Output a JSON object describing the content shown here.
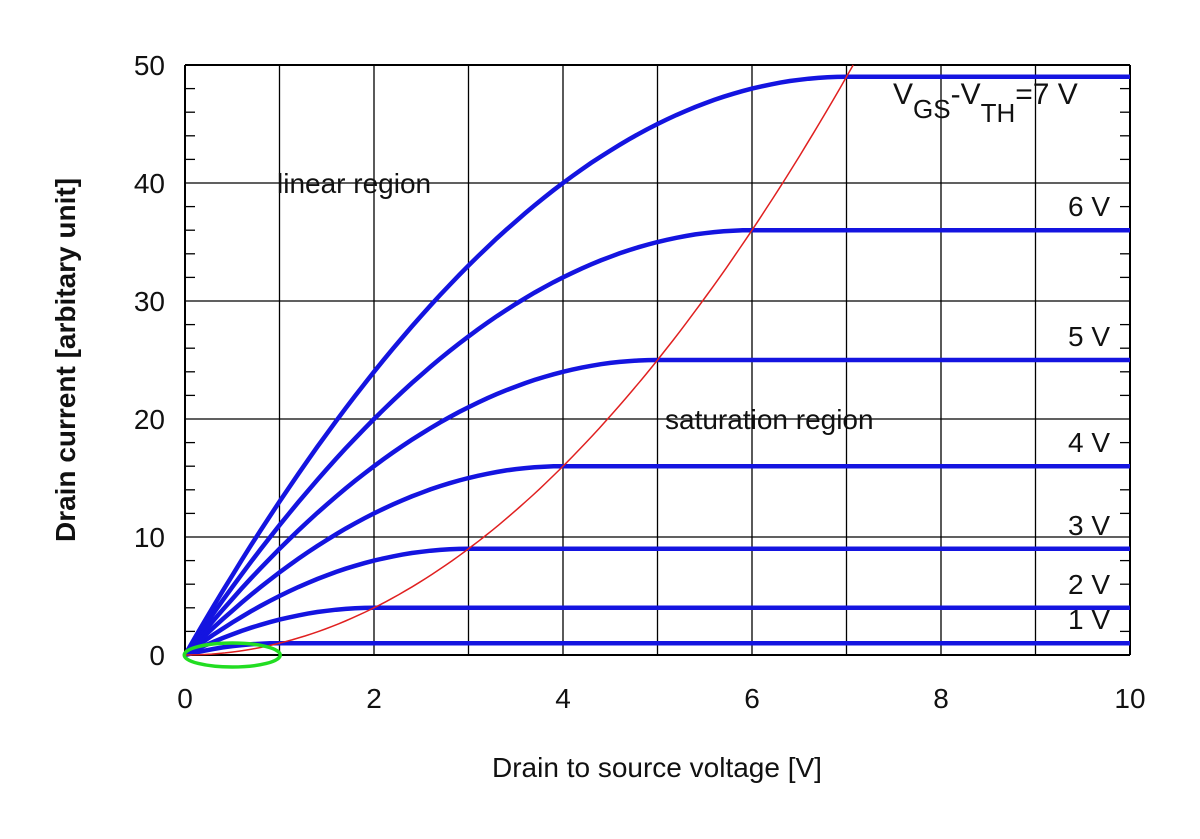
{
  "chart_data": {
    "type": "line",
    "xlabel": "Drain to source voltage [V]",
    "ylabel": "Drain current [arbitary unit]",
    "xlim": [
      0,
      10
    ],
    "ylim": [
      0,
      50
    ],
    "xticks": [
      "0",
      "2",
      "4",
      "6",
      "8",
      "10"
    ],
    "yticks": [
      "0",
      "10",
      "20",
      "30",
      "40",
      "50"
    ],
    "grid": true,
    "series": [
      {
        "name": "1 V",
        "vov": 1,
        "saturation_current": 1
      },
      {
        "name": "2 V",
        "vov": 2,
        "saturation_current": 4
      },
      {
        "name": "3 V",
        "vov": 3,
        "saturation_current": 9
      },
      {
        "name": "4 V",
        "vov": 4,
        "saturation_current": 16
      },
      {
        "name": "5 V",
        "vov": 5,
        "saturation_current": 25
      },
      {
        "name": "6 V",
        "vov": 6,
        "saturation_current": 36
      },
      {
        "name": "7 V",
        "vov": 7,
        "saturation_current": 49
      }
    ],
    "top_label": {
      "v": "V",
      "gs": "GS",
      "dash_v": "-V",
      "th": "TH",
      "value": "=7 V"
    },
    "boundary_curve": {
      "description_formula": "I = Vds^2",
      "color": "#e02020"
    },
    "annotations": {
      "linear": "linear region",
      "saturation": "saturation region"
    },
    "colors": {
      "curves": "#1414e0",
      "boundary": "#e02020",
      "highlight_ellipse": "#22dd22",
      "grid": "#000000"
    }
  }
}
